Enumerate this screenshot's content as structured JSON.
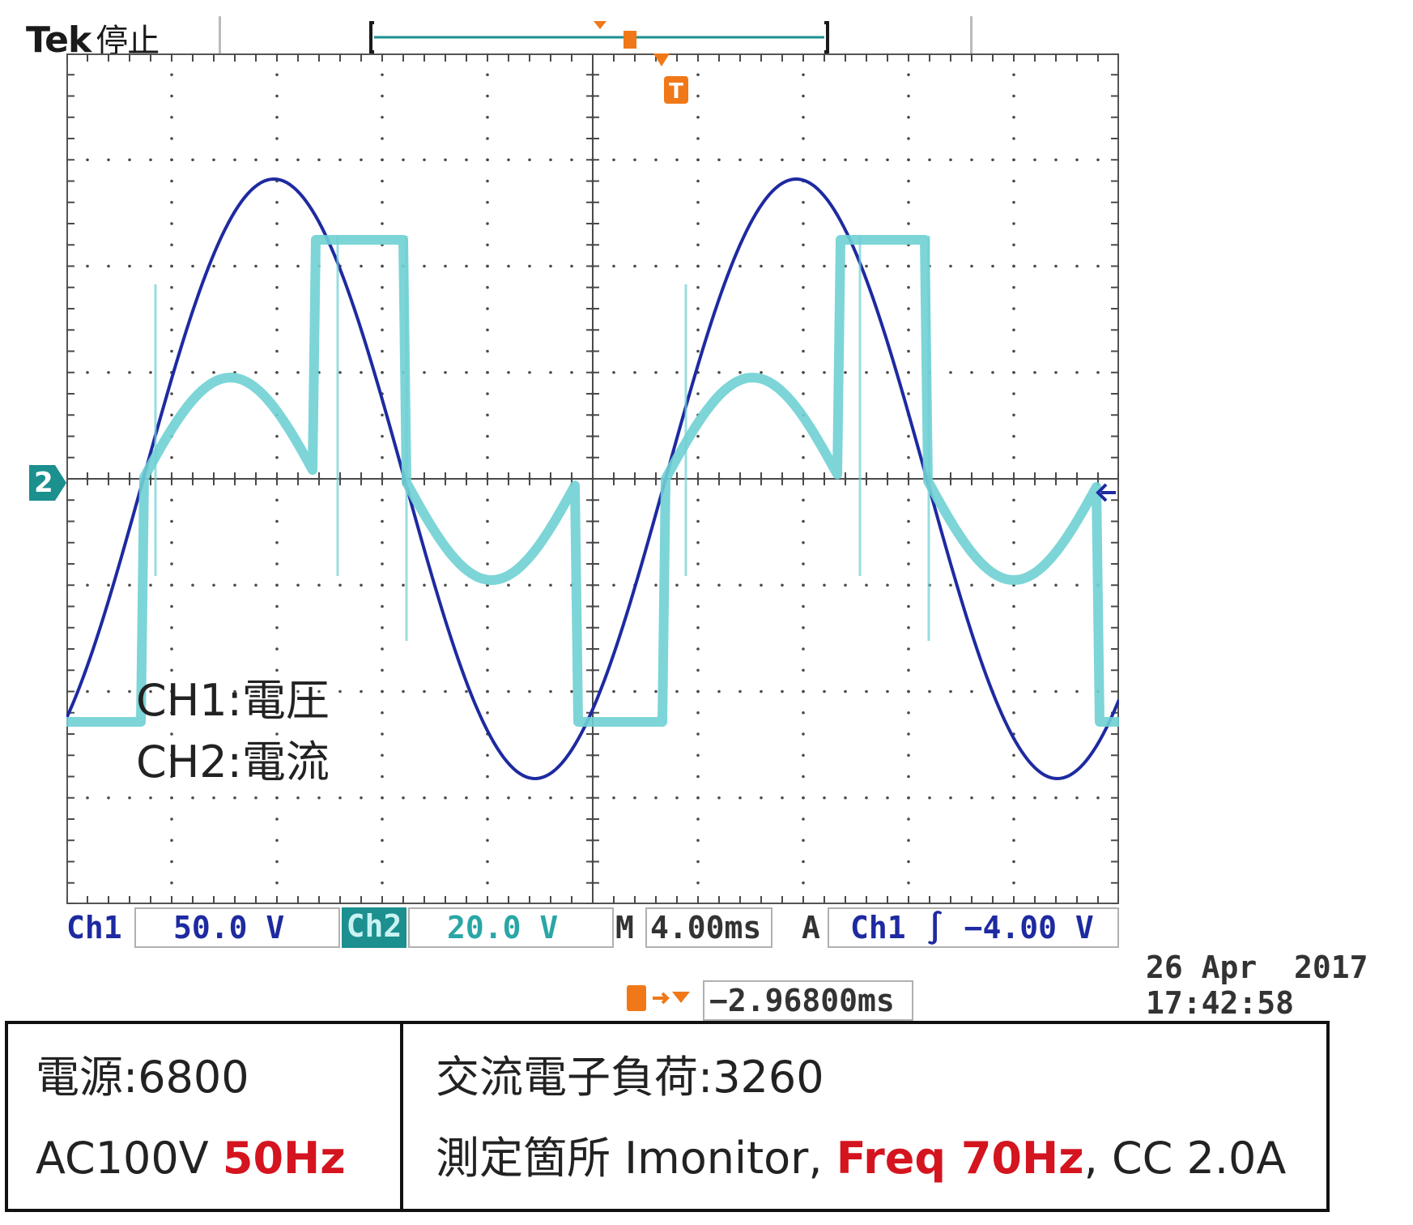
{
  "header": {
    "brand": "Tek",
    "state": "停止"
  },
  "screen": {
    "legend": {
      "ch1": "CH1:電圧",
      "ch2": "CH2:電流"
    },
    "ch2_marker": "2",
    "trigger_marker": "T",
    "colors": {
      "ch1": "#1e2aa0",
      "ch2": "#6fd0d4",
      "grid": "#4a4a4a",
      "trigger": "#f07818"
    }
  },
  "status_bar": {
    "ch1_label": "Ch1",
    "ch1_scale": "50.0 V",
    "ch2_label": "Ch2",
    "ch2_scale": "20.0 V",
    "timebase_label": "M",
    "timebase": "4.00ms",
    "acq_label": "A",
    "trigger_source": "Ch1",
    "trigger_slope": "rising-edge-icon",
    "trigger_level": "−4.00 V"
  },
  "trigger_position": {
    "icon": "trigger-position-icon",
    "value": "−2.96800ms"
  },
  "timestamp": {
    "date": "26 Apr  2017",
    "time": "17:42:58"
  },
  "info": {
    "psu_name": "電源:6800",
    "psu_voltage": "AC100V ",
    "psu_freq": "50Hz",
    "load_name": "交流電子負荷:3260",
    "load_point": "測定箇所 Imonitor, ",
    "load_freq": "Freq 70Hz",
    "load_cc": ", CC 2.0A"
  }
}
